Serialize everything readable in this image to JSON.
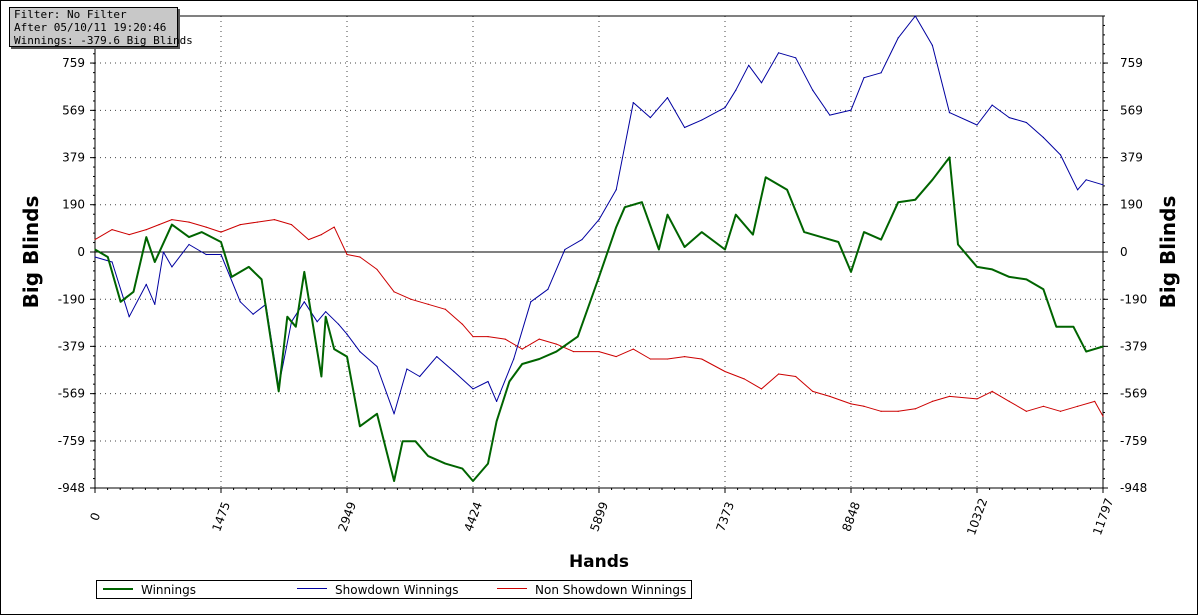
{
  "info": {
    "filter": "Filter: No Filter",
    "after": "After 05/10/11 19:20:46",
    "winnings": "Winnings: -379.6 Big Blinds"
  },
  "chart_data": {
    "type": "line",
    "xlabel": "Hands",
    "ylabel": "Big Blinds",
    "xlim": [
      0,
      11797
    ],
    "ylim": [
      -948,
      948
    ],
    "x_ticks": [
      "0",
      "1475",
      "2949",
      "4424",
      "5899",
      "7373",
      "8848",
      "10322",
      "11797"
    ],
    "y_ticks": [
      759,
      569,
      379,
      190,
      0,
      -190,
      -379,
      -569,
      -759,
      -948
    ],
    "y_tick_labels": [
      "759",
      "569",
      "379",
      "190",
      "0",
      "-190",
      "-379",
      "-569",
      "-759",
      "-948"
    ],
    "grid": true,
    "legend_position": "bottom",
    "series": [
      {
        "name": "Winnings",
        "color": "#006400",
        "x": [
          0,
          150,
          300,
          450,
          600,
          700,
          900,
          1100,
          1250,
          1475,
          1600,
          1800,
          1950,
          2150,
          2250,
          2350,
          2450,
          2650,
          2700,
          2800,
          2949,
          3100,
          3300,
          3500,
          3600,
          3750,
          3900,
          4100,
          4300,
          4424,
          4600,
          4700,
          4850,
          5000,
          5200,
          5400,
          5650,
          5899,
          6100,
          6200,
          6400,
          6600,
          6700,
          6900,
          7100,
          7373,
          7500,
          7700,
          7850,
          8100,
          8300,
          8500,
          8700,
          8848,
          9000,
          9200,
          9400,
          9600,
          9800,
          10000,
          10100,
          10322,
          10500,
          10700,
          10900,
          11100,
          11250,
          11450,
          11600,
          11797
        ],
        "y": [
          10,
          -20,
          -200,
          -160,
          60,
          -40,
          110,
          60,
          80,
          40,
          -100,
          -60,
          -110,
          -560,
          -260,
          -300,
          -80,
          -500,
          -260,
          -390,
          -420,
          -700,
          -650,
          -920,
          -760,
          -760,
          -820,
          -850,
          -870,
          -920,
          -850,
          -680,
          -520,
          -450,
          -430,
          -400,
          -340,
          -100,
          100,
          180,
          200,
          10,
          150,
          20,
          80,
          10,
          150,
          70,
          300,
          250,
          80,
          60,
          40,
          -80,
          80,
          50,
          200,
          210,
          290,
          380,
          30,
          -60,
          -70,
          -100,
          -110,
          -150,
          -300,
          -300,
          -400,
          -379.6
        ]
      },
      {
        "name": "Showdown Winnings",
        "color": "#0000a0",
        "x": [
          0,
          200,
          400,
          600,
          700,
          800,
          900,
          1100,
          1300,
          1475,
          1700,
          1850,
          2000,
          2150,
          2300,
          2450,
          2600,
          2700,
          2850,
          2949,
          3100,
          3300,
          3500,
          3650,
          3800,
          4000,
          4200,
          4424,
          4600,
          4700,
          4900,
          5100,
          5300,
          5500,
          5700,
          5899,
          6100,
          6300,
          6500,
          6700,
          6900,
          7100,
          7373,
          7500,
          7650,
          7800,
          8000,
          8200,
          8400,
          8600,
          8848,
          9000,
          9200,
          9400,
          9600,
          9800,
          10000,
          10322,
          10500,
          10700,
          10900,
          11100,
          11300,
          11500,
          11600,
          11797
        ],
        "y": [
          -20,
          -40,
          -260,
          -130,
          -210,
          0,
          -60,
          30,
          -10,
          -10,
          -200,
          -250,
          -210,
          -540,
          -280,
          -200,
          -280,
          -240,
          -290,
          -330,
          -400,
          -460,
          -650,
          -470,
          -500,
          -420,
          -480,
          -550,
          -520,
          -600,
          -430,
          -200,
          -150,
          10,
          50,
          130,
          250,
          600,
          540,
          620,
          500,
          530,
          580,
          650,
          750,
          680,
          800,
          780,
          650,
          550,
          570,
          700,
          720,
          860,
          948,
          830,
          560,
          510,
          590,
          540,
          520,
          460,
          390,
          250,
          290,
          270
        ]
      },
      {
        "name": "Non Showdown Winnings",
        "color": "#cc0000",
        "x": [
          0,
          200,
          400,
          600,
          750,
          900,
          1100,
          1300,
          1475,
          1700,
          1900,
          2100,
          2300,
          2500,
          2650,
          2800,
          2949,
          3100,
          3300,
          3500,
          3700,
          3900,
          4100,
          4300,
          4424,
          4600,
          4800,
          5000,
          5200,
          5400,
          5600,
          5899,
          6100,
          6300,
          6500,
          6700,
          6900,
          7100,
          7373,
          7600,
          7800,
          8000,
          8200,
          8400,
          8600,
          8848,
          9000,
          9200,
          9400,
          9600,
          9800,
          10000,
          10322,
          10500,
          10700,
          10900,
          11100,
          11300,
          11500,
          11700,
          11797
        ],
        "y": [
          50,
          90,
          70,
          90,
          110,
          130,
          120,
          100,
          80,
          110,
          120,
          130,
          110,
          50,
          70,
          100,
          -10,
          -20,
          -70,
          -160,
          -190,
          -210,
          -230,
          -290,
          -340,
          -340,
          -350,
          -390,
          -350,
          -370,
          -400,
          -400,
          -420,
          -390,
          -430,
          -430,
          -420,
          -430,
          -480,
          -510,
          -550,
          -490,
          -500,
          -560,
          -580,
          -610,
          -620,
          -640,
          -640,
          -630,
          -600,
          -580,
          -590,
          -560,
          -600,
          -640,
          -620,
          -640,
          -620,
          -600,
          -660
        ]
      }
    ]
  }
}
